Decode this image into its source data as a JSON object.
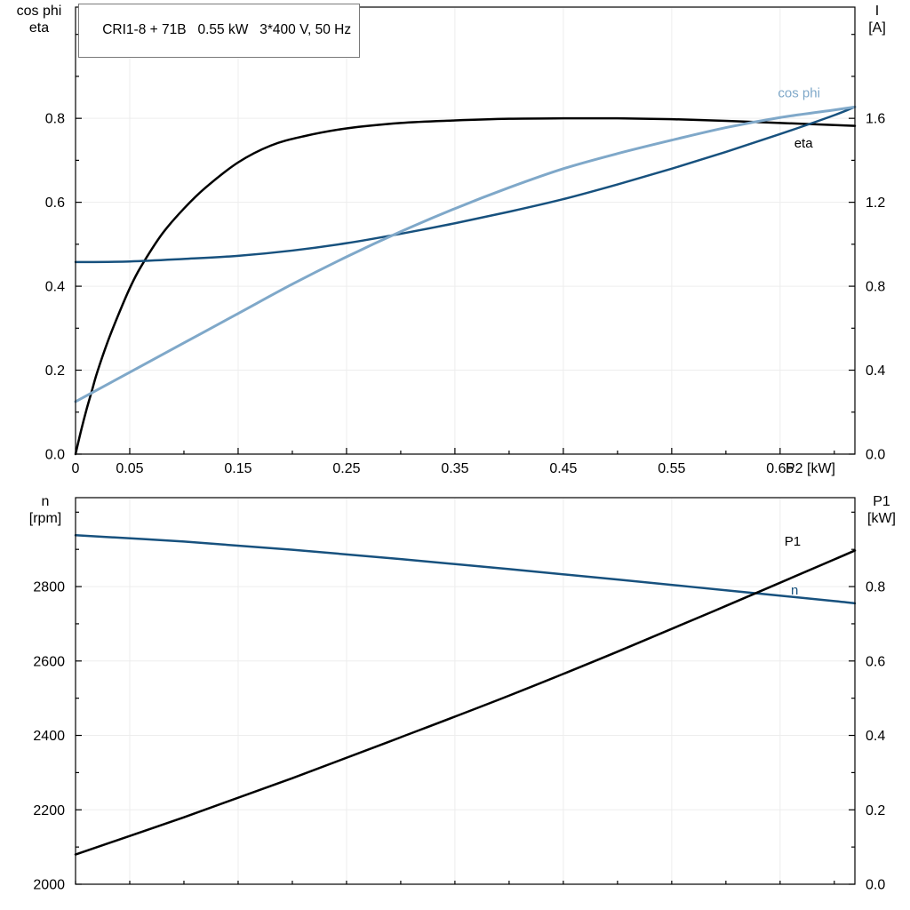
{
  "colors": {
    "black": "#000000",
    "dark_blue": "#17517e",
    "light_blue": "#7fa8c9",
    "grid": "#ededed",
    "border": "#000000",
    "title_box_border": "#7a7a7a"
  },
  "chart_data": [
    {
      "id": "top",
      "type": "line",
      "title": "CRI1-8 + 71B   0.55 kW   3*400 V, 50 Hz",
      "xlabel": "P2 [kW]",
      "ylabel_left": [
        "cos phi",
        "eta"
      ],
      "ylabel_right": [
        "I",
        "[A]"
      ],
      "xlim": [
        0,
        0.719
      ],
      "ylim_left": [
        0,
        1.065
      ],
      "ylim_right": [
        0,
        2.13
      ],
      "grid_x": [
        0.05,
        0.15,
        0.25,
        0.35,
        0.45,
        0.55,
        0.65
      ],
      "grid_y": [
        0.2,
        0.4,
        0.6,
        0.8
      ],
      "xticks": [
        {
          "v": 0,
          "label": "0"
        },
        {
          "v": 0.05,
          "label": "0.05"
        },
        {
          "v": 0.1,
          "label": ""
        },
        {
          "v": 0.15,
          "label": "0.15"
        },
        {
          "v": 0.2,
          "label": ""
        },
        {
          "v": 0.25,
          "label": "0.25"
        },
        {
          "v": 0.3,
          "label": ""
        },
        {
          "v": 0.35,
          "label": "0.35"
        },
        {
          "v": 0.4,
          "label": ""
        },
        {
          "v": 0.45,
          "label": "0.45"
        },
        {
          "v": 0.5,
          "label": ""
        },
        {
          "v": 0.55,
          "label": "0.55"
        },
        {
          "v": 0.6,
          "label": ""
        },
        {
          "v": 0.65,
          "label": "0.65"
        },
        {
          "v": 0.7,
          "label": ""
        }
      ],
      "yticks_left": [
        {
          "v": 0,
          "label": "0.0"
        },
        {
          "v": 0.1,
          "label": ""
        },
        {
          "v": 0.2,
          "label": "0.2"
        },
        {
          "v": 0.3,
          "label": ""
        },
        {
          "v": 0.4,
          "label": "0.4"
        },
        {
          "v": 0.5,
          "label": ""
        },
        {
          "v": 0.6,
          "label": "0.6"
        },
        {
          "v": 0.7,
          "label": ""
        },
        {
          "v": 0.8,
          "label": "0.8"
        },
        {
          "v": 0.9,
          "label": ""
        },
        {
          "v": 1.0,
          "label": ""
        }
      ],
      "yticks_right": [
        {
          "v": 0,
          "label": "0.0"
        },
        {
          "v": 0.2,
          "label": ""
        },
        {
          "v": 0.4,
          "label": "0.4"
        },
        {
          "v": 0.6,
          "label": ""
        },
        {
          "v": 0.8,
          "label": "0.8"
        },
        {
          "v": 1.0,
          "label": ""
        },
        {
          "v": 1.2,
          "label": "1.2"
        },
        {
          "v": 1.4,
          "label": ""
        },
        {
          "v": 1.6,
          "label": "1.6"
        },
        {
          "v": 1.8,
          "label": ""
        },
        {
          "v": 2.0,
          "label": ""
        }
      ],
      "series": [
        {
          "name": "eta",
          "axis": "left",
          "color": "#000000",
          "width": 2.5,
          "label": {
            "text": "eta",
            "x": 0.663,
            "y": 0.73,
            "anchor": "start",
            "color": "#000000"
          },
          "x": [
            0,
            0.005,
            0.01,
            0.015,
            0.02,
            0.03,
            0.04,
            0.05,
            0.06,
            0.08,
            0.1,
            0.12,
            0.15,
            0.18,
            0.21,
            0.25,
            0.3,
            0.35,
            0.4,
            0.45,
            0.5,
            0.55,
            0.6,
            0.65,
            0.719
          ],
          "y": [
            0,
            0.055,
            0.105,
            0.15,
            0.195,
            0.27,
            0.335,
            0.395,
            0.445,
            0.525,
            0.585,
            0.635,
            0.695,
            0.735,
            0.757,
            0.776,
            0.789,
            0.795,
            0.799,
            0.8,
            0.8,
            0.798,
            0.794,
            0.789,
            0.782
          ]
        },
        {
          "name": "I",
          "axis": "right",
          "color": "#17517e",
          "width": 2.5,
          "x": [
            0,
            0.05,
            0.1,
            0.15,
            0.2,
            0.25,
            0.3,
            0.35,
            0.4,
            0.45,
            0.5,
            0.55,
            0.6,
            0.65,
            0.7,
            0.719
          ],
          "y": [
            0.915,
            0.918,
            0.93,
            0.945,
            0.97,
            1.005,
            1.05,
            1.1,
            1.155,
            1.215,
            1.285,
            1.36,
            1.44,
            1.525,
            1.615,
            1.655
          ]
        },
        {
          "name": "cos phi",
          "axis": "left",
          "color": "#7fa8c9",
          "width": 3,
          "label": {
            "text": "cos phi",
            "x": 0.648,
            "y": 0.85,
            "anchor": "start",
            "color": "#7fa8c9"
          },
          "x": [
            0,
            0.05,
            0.1,
            0.15,
            0.2,
            0.25,
            0.3,
            0.35,
            0.4,
            0.45,
            0.5,
            0.55,
            0.6,
            0.65,
            0.7,
            0.719
          ],
          "y": [
            0.125,
            0.195,
            0.265,
            0.335,
            0.405,
            0.47,
            0.53,
            0.585,
            0.635,
            0.68,
            0.716,
            0.748,
            0.778,
            0.802,
            0.82,
            0.827
          ]
        }
      ]
    },
    {
      "id": "bottom",
      "type": "line",
      "title": "",
      "xlabel": "",
      "ylabel_left": [
        "n",
        "[rpm]"
      ],
      "ylabel_right": [
        "P1",
        "[kW]"
      ],
      "xlim": [
        0,
        0.719
      ],
      "ylim_left": [
        2000,
        3039
      ],
      "ylim_right": [
        0,
        1.039
      ],
      "grid_x": [
        0.05,
        0.15,
        0.25,
        0.35,
        0.45,
        0.55,
        0.65
      ],
      "grid_y": [
        2200,
        2400,
        2600,
        2800
      ],
      "xticks": [
        {
          "v": 0,
          "label": ""
        },
        {
          "v": 0.05,
          "label": ""
        },
        {
          "v": 0.1,
          "label": ""
        },
        {
          "v": 0.15,
          "label": ""
        },
        {
          "v": 0.2,
          "label": ""
        },
        {
          "v": 0.25,
          "label": ""
        },
        {
          "v": 0.3,
          "label": ""
        },
        {
          "v": 0.35,
          "label": ""
        },
        {
          "v": 0.4,
          "label": ""
        },
        {
          "v": 0.45,
          "label": ""
        },
        {
          "v": 0.5,
          "label": ""
        },
        {
          "v": 0.55,
          "label": ""
        },
        {
          "v": 0.6,
          "label": ""
        },
        {
          "v": 0.65,
          "label": ""
        },
        {
          "v": 0.7,
          "label": ""
        }
      ],
      "yticks_left": [
        {
          "v": 2000,
          "label": "2000"
        },
        {
          "v": 2100,
          "label": ""
        },
        {
          "v": 2200,
          "label": "2200"
        },
        {
          "v": 2300,
          "label": ""
        },
        {
          "v": 2400,
          "label": "2400"
        },
        {
          "v": 2500,
          "label": ""
        },
        {
          "v": 2600,
          "label": "2600"
        },
        {
          "v": 2700,
          "label": ""
        },
        {
          "v": 2800,
          "label": "2800"
        },
        {
          "v": 2900,
          "label": ""
        },
        {
          "v": 3000,
          "label": ""
        }
      ],
      "yticks_right": [
        {
          "v": 0,
          "label": "0.0"
        },
        {
          "v": 0.1,
          "label": ""
        },
        {
          "v": 0.2,
          "label": "0.2"
        },
        {
          "v": 0.3,
          "label": ""
        },
        {
          "v": 0.4,
          "label": "0.4"
        },
        {
          "v": 0.5,
          "label": ""
        },
        {
          "v": 0.6,
          "label": "0.6"
        },
        {
          "v": 0.7,
          "label": ""
        },
        {
          "v": 0.8,
          "label": "0.8"
        },
        {
          "v": 0.9,
          "label": ""
        },
        {
          "v": 1.0,
          "label": ""
        }
      ],
      "series": [
        {
          "name": "n",
          "axis": "left",
          "color": "#17517e",
          "width": 2.5,
          "label": {
            "text": "n",
            "x": 0.66,
            "y": 2779,
            "anchor": "start",
            "color": "#17517e"
          },
          "x": [
            0,
            0.1,
            0.2,
            0.3,
            0.4,
            0.5,
            0.6,
            0.7,
            0.719
          ],
          "y": [
            2938,
            2921,
            2899,
            2874,
            2847,
            2819,
            2790,
            2761,
            2755
          ]
        },
        {
          "name": "P1",
          "axis": "right",
          "color": "#000000",
          "width": 2.5,
          "label": {
            "text": "P1",
            "x": 0.654,
            "y": 0.91,
            "anchor": "start",
            "color": "#000000"
          },
          "x": [
            0,
            0.1,
            0.2,
            0.3,
            0.4,
            0.5,
            0.6,
            0.7,
            0.719
          ],
          "y": [
            0.08,
            0.18,
            0.285,
            0.395,
            0.507,
            0.625,
            0.748,
            0.873,
            0.897
          ]
        }
      ]
    }
  ]
}
